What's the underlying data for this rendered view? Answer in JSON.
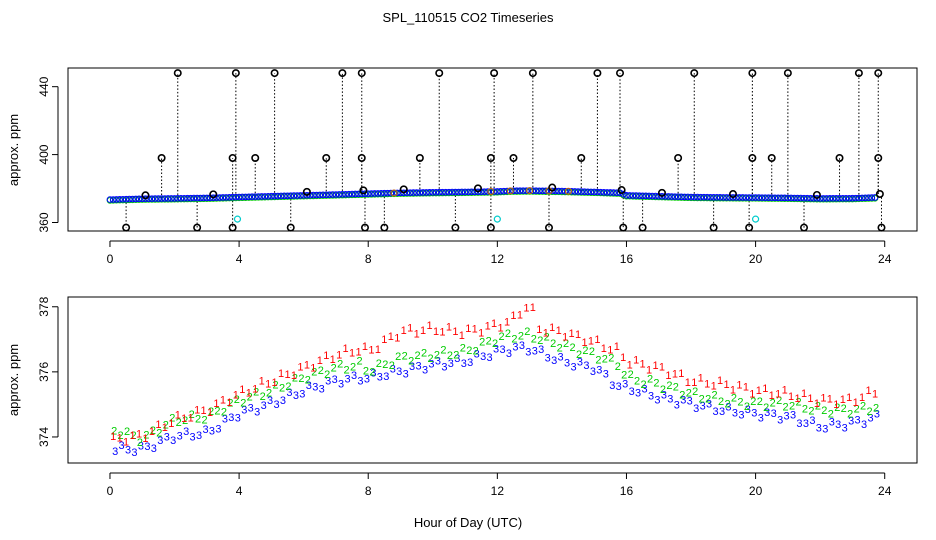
{
  "figure": {
    "title": "SPL_110515  CO2 Timeseries",
    "xlabel": "Hour of Day (UTC)"
  },
  "colors": {
    "black": "#000000",
    "blue": "#0000ff",
    "green": "#00cc00",
    "red": "#ff0000",
    "cyan": "#00cccc",
    "orange": "#cc6600"
  },
  "chart_data": [
    {
      "type": "scatter",
      "panel": "top",
      "title": "",
      "xlabel": "",
      "ylabel": "approx. ppm",
      "xlim": [
        -1.3,
        25
      ],
      "ylim": [
        355,
        451
      ],
      "xticks": [
        0,
        4,
        8,
        12,
        16,
        20,
        24
      ],
      "yticks": [
        360,
        400,
        440
      ],
      "baseline_series": {
        "name": "blue/green/orange points",
        "x": [
          0.0,
          1.0,
          2.0,
          3.0,
          4.0,
          5.0,
          6.0,
          7.0,
          8.0,
          9.0,
          10.0,
          11.0,
          12.0,
          12.5,
          13.0,
          14.0,
          15.0,
          15.8,
          16.0,
          17.0,
          18.0,
          19.0,
          20.0,
          21.0,
          22.0,
          23.0,
          23.8
        ],
        "y": [
          373.5,
          374.0,
          374.2,
          374.5,
          375.0,
          375.5,
          376.0,
          376.5,
          377.0,
          377.5,
          377.8,
          378.0,
          378.3,
          378.7,
          378.8,
          378.5,
          378.0,
          377.5,
          376.0,
          375.5,
          375.0,
          374.8,
          374.7,
          374.5,
          374.2,
          374.3,
          374.8
        ]
      },
      "spikes_high": [
        2.1,
        3.9,
        5.1,
        7.2,
        7.8,
        10.2,
        11.9,
        13.1,
        15.1,
        15.8,
        18.1,
        19.9,
        21.0,
        23.2,
        23.8
      ],
      "spikes_high_value": 448,
      "spikes_mid": [
        1.6,
        3.8,
        4.5,
        6.7,
        7.8,
        9.6,
        11.8,
        12.5,
        14.6,
        17.6,
        19.9,
        20.5,
        22.6,
        23.8
      ],
      "spikes_mid_value": 398,
      "spikes_low": [
        0.5,
        2.7,
        3.8,
        5.6,
        7.9,
        8.5,
        10.7,
        11.8,
        13.6,
        15.9,
        16.5,
        18.7,
        19.8,
        21.5,
        23.9
      ],
      "spikes_low_value": 357,
      "cyan_points": [
        {
          "x": 3.95,
          "y": 362
        },
        {
          "x": 12.0,
          "y": 362
        },
        {
          "x": 20.0,
          "y": 362
        }
      ],
      "hollow_marks_black": [
        1.1,
        3.2,
        6.1,
        7.85,
        9.1,
        11.4,
        13.7,
        15.85,
        17.1,
        19.3,
        21.9,
        23.85
      ]
    },
    {
      "type": "line",
      "panel": "bottom",
      "title": "",
      "xlabel": "Hour of Day (UTC)",
      "ylabel": "approx. ppm",
      "xlim": [
        -1.3,
        25
      ],
      "ylim": [
        373.2,
        378.3
      ],
      "xticks": [
        0,
        4,
        8,
        12,
        16,
        20,
        24
      ],
      "yticks": [
        374,
        376,
        378
      ],
      "series": [
        {
          "name": "1",
          "label": "1",
          "x": [
            0.1,
            1.0,
            2.0,
            3.0,
            4.0,
            5.0,
            6.0,
            7.0,
            7.8,
            8.0,
            9.0,
            10.0,
            11.0,
            12.0,
            12.5,
            13.0,
            13.3,
            14.0,
            15.0,
            15.8,
            16.0,
            17.0,
            18.0,
            19.0,
            20.0,
            21.0,
            22.0,
            23.0,
            23.8
          ],
          "y": [
            373.9,
            374.0,
            374.5,
            374.8,
            375.3,
            375.7,
            376.1,
            376.5,
            376.7,
            376.6,
            377.2,
            377.3,
            377.2,
            377.4,
            377.6,
            378.1,
            377.3,
            377.2,
            376.9,
            376.6,
            376.3,
            376.1,
            375.7,
            375.6,
            375.4,
            375.3,
            375.1,
            375.1,
            375.4
          ]
        },
        {
          "name": "2",
          "label": "2",
          "x": [
            0.1,
            1.0,
            2.0,
            3.0,
            4.0,
            5.0,
            6.0,
            7.0,
            7.8,
            8.0,
            9.0,
            10.0,
            11.0,
            12.0,
            12.5,
            13.0,
            14.0,
            15.0,
            15.8,
            16.0,
            17.0,
            18.0,
            19.0,
            20.0,
            21.0,
            22.0,
            23.0,
            23.8
          ],
          "y": [
            374.2,
            373.9,
            374.5,
            374.6,
            375.1,
            375.4,
            375.8,
            376.1,
            376.2,
            376.0,
            376.4,
            376.5,
            376.6,
            377.0,
            377.1,
            377.1,
            376.8,
            376.5,
            376.2,
            375.8,
            375.6,
            375.3,
            375.1,
            375.0,
            375.0,
            374.8,
            374.8,
            374.9
          ]
        },
        {
          "name": "3",
          "label": "3",
          "x": [
            0.1,
            1.0,
            2.0,
            3.0,
            4.0,
            5.0,
            6.0,
            7.0,
            7.8,
            8.0,
            9.0,
            10.0,
            11.0,
            12.0,
            12.5,
            13.0,
            14.0,
            15.0,
            15.8,
            16.0,
            17.0,
            18.0,
            19.0,
            20.0,
            21.0,
            22.0,
            23.0,
            23.8
          ],
          "y": [
            373.6,
            373.6,
            374.0,
            374.1,
            374.7,
            375.0,
            375.4,
            375.7,
            375.8,
            375.8,
            376.0,
            376.2,
            376.3,
            376.6,
            376.7,
            376.7,
            376.3,
            376.1,
            375.5,
            375.5,
            375.2,
            375.0,
            374.8,
            374.7,
            374.6,
            374.3,
            374.4,
            374.6
          ]
        }
      ]
    }
  ]
}
